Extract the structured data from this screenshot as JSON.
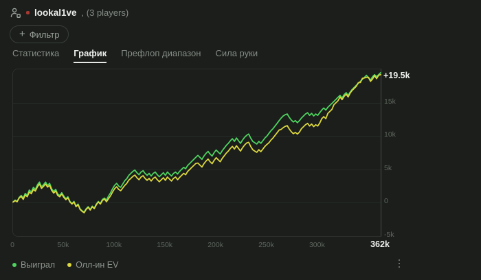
{
  "header": {
    "player_name": "lookal1ve",
    "players_suffix": ", (3 players)"
  },
  "filter": {
    "plus": "+",
    "label": "Фильтр"
  },
  "tabs": [
    {
      "key": "statistics",
      "label": "Статистика",
      "active": false
    },
    {
      "key": "graph",
      "label": "График",
      "active": true
    },
    {
      "key": "preflop-range",
      "label": "Префлоп диапазон",
      "active": false
    },
    {
      "key": "hand-strength",
      "label": "Сила руки",
      "active": false
    }
  ],
  "chart_data": {
    "type": "line",
    "title": "",
    "xlabel": "hands",
    "ylabel": "profit",
    "xlim": [
      0,
      362000
    ],
    "ylim": [
      -5000,
      20000
    ],
    "grid": true,
    "legend_position": "bottom-left",
    "x_ticks": [
      {
        "value": 0,
        "label": "0"
      },
      {
        "value": 50000,
        "label": "50k"
      },
      {
        "value": 100000,
        "label": "100k"
      },
      {
        "value": 150000,
        "label": "150k"
      },
      {
        "value": 200000,
        "label": "200k"
      },
      {
        "value": 250000,
        "label": "250k"
      },
      {
        "value": 300000,
        "label": "300k"
      },
      {
        "value": 362000,
        "label": "362k",
        "bold": true
      }
    ],
    "y_ticks": [
      {
        "value": 15000,
        "label": "15k"
      },
      {
        "value": 10000,
        "label": "10k"
      },
      {
        "value": 5000,
        "label": "5k"
      },
      {
        "value": 0,
        "label": "0"
      },
      {
        "value": -5000,
        "label": "-5k"
      }
    ],
    "end_label": {
      "text": "+19.5k",
      "value": 19500
    },
    "series": [
      {
        "key": "won",
        "name": "Выиграл",
        "color": "#4fd35f",
        "points": {
          "x_start_k": 0,
          "x_step_k": 2,
          "values_k": [
            0.1,
            0.4,
            0.2,
            0.8,
            1.1,
            0.7,
            1.4,
            1.1,
            1.9,
            1.6,
            2.3,
            2.0,
            2.7,
            3.1,
            2.4,
            2.7,
            3.1,
            2.6,
            2.9,
            2.1,
            1.7,
            2.0,
            1.3,
            1.1,
            1.5,
            1.0,
            0.6,
            0.9,
            0.2,
            -0.1,
            0.2,
            -0.5,
            -0.2,
            -0.9,
            -1.2,
            -1.4,
            -0.9,
            -0.6,
            -1.0,
            -0.5,
            -0.8,
            -0.2,
            0.2,
            -0.1,
            0.5,
            0.7,
            0.4,
            1.0,
            1.5,
            2.1,
            2.6,
            2.9,
            2.5,
            2.3,
            2.8,
            3.3,
            3.6,
            4.1,
            4.4,
            4.7,
            4.9,
            4.5,
            4.2,
            4.6,
            4.8,
            4.4,
            4.1,
            4.4,
            4.0,
            4.4,
            4.6,
            4.2,
            3.9,
            4.2,
            4.5,
            4.1,
            4.6,
            4.3,
            4.0,
            4.4,
            4.6,
            4.3,
            4.7,
            5.0,
            5.3,
            5.1,
            5.6,
            5.9,
            6.2,
            6.5,
            6.8,
            7.1,
            6.8,
            6.5,
            7.0,
            7.4,
            7.7,
            7.3,
            7.0,
            7.5,
            7.9,
            7.6,
            7.3,
            7.8,
            8.2,
            8.6,
            8.9,
            9.3,
            9.6,
            9.2,
            9.7,
            9.3,
            8.9,
            9.4,
            9.8,
            10.1,
            10.3,
            9.7,
            9.2,
            9.0,
            8.8,
            9.2,
            8.9,
            9.3,
            9.7,
            10.0,
            10.4,
            10.8,
            11.1,
            11.5,
            11.9,
            12.3,
            12.7,
            13.0,
            13.2,
            13.3,
            12.8,
            12.4,
            12.1,
            12.3,
            12.0,
            12.3,
            12.7,
            13.0,
            13.3,
            13.5,
            13.1,
            13.4,
            13.0,
            13.3,
            13.1,
            13.5,
            13.9,
            14.2,
            13.9,
            14.3,
            14.6,
            14.9,
            15.2,
            15.5,
            15.8,
            16.1,
            15.7,
            16.2,
            16.5,
            16.1,
            16.6,
            17.0,
            17.3,
            17.6,
            17.9,
            18.2,
            18.5,
            18.8,
            19.1,
            18.7,
            18.4,
            18.9,
            19.2,
            18.9,
            19.2,
            19.5
          ]
        }
      },
      {
        "key": "allin-ev",
        "name": "Олл-ин EV",
        "color": "#ddd83f",
        "points": {
          "x_start_k": 0,
          "x_step_k": 2,
          "values_k": [
            0.1,
            0.3,
            0.15,
            0.7,
            0.95,
            0.5,
            1.15,
            0.9,
            1.6,
            1.35,
            2.0,
            1.75,
            2.4,
            2.8,
            2.15,
            2.45,
            2.8,
            2.35,
            2.6,
            1.85,
            1.45,
            1.75,
            1.1,
            0.9,
            1.3,
            0.8,
            0.45,
            0.75,
            0.1,
            -0.2,
            0.1,
            -0.6,
            -0.3,
            -1.0,
            -1.3,
            -1.5,
            -1.0,
            -0.7,
            -1.1,
            -0.6,
            -0.9,
            -0.3,
            0.1,
            -0.2,
            0.35,
            0.55,
            0.15,
            0.6,
            1.05,
            1.6,
            2.1,
            2.4,
            2.0,
            1.8,
            2.2,
            2.6,
            2.9,
            3.4,
            3.65,
            3.95,
            4.15,
            3.75,
            3.45,
            3.85,
            4.05,
            3.65,
            3.35,
            3.65,
            3.25,
            3.65,
            3.85,
            3.45,
            3.15,
            3.45,
            3.75,
            3.35,
            3.85,
            3.55,
            3.25,
            3.65,
            3.85,
            3.45,
            3.8,
            4.1,
            4.4,
            4.2,
            4.7,
            5.0,
            5.3,
            5.6,
            5.9,
            5.95,
            5.65,
            5.35,
            5.85,
            6.25,
            6.55,
            6.15,
            5.85,
            6.35,
            6.75,
            6.45,
            6.15,
            6.65,
            7.05,
            7.45,
            7.75,
            8.15,
            8.45,
            8.05,
            8.55,
            8.15,
            7.75,
            8.25,
            8.65,
            8.95,
            9.05,
            8.45,
            7.95,
            7.75,
            7.55,
            7.95,
            7.65,
            8.05,
            8.45,
            8.75,
            9.0,
            9.4,
            9.7,
            10.1,
            10.5,
            10.9,
            11.0,
            11.25,
            11.45,
            11.55,
            11.05,
            10.65,
            10.35,
            10.55,
            10.3,
            10.6,
            11.1,
            11.4,
            11.7,
            11.9,
            11.5,
            11.8,
            11.4,
            11.7,
            11.5,
            11.95,
            12.6,
            12.9,
            12.6,
            13.4,
            13.7,
            14.0,
            14.7,
            15.0,
            15.3,
            15.85,
            15.45,
            15.95,
            16.25,
            15.85,
            16.45,
            16.85,
            17.15,
            17.45,
            18.0,
            18.0,
            18.65,
            18.7,
            18.8,
            18.8,
            18.2,
            18.55,
            19.05,
            18.6,
            19.1,
            19.2
          ]
        }
      }
    ]
  },
  "menu": {
    "more_icon": "kebab"
  },
  "colors": {
    "background": "#1b1e1b",
    "won_line": "#4fd35f",
    "ev_line": "#ddd83f",
    "grid": "#262b26",
    "axis_line": "#484d48",
    "axis_label": "#60665f",
    "text_primary": "#eceeec",
    "text_secondary": "#878d87",
    "status_dot": "#a63a32"
  }
}
